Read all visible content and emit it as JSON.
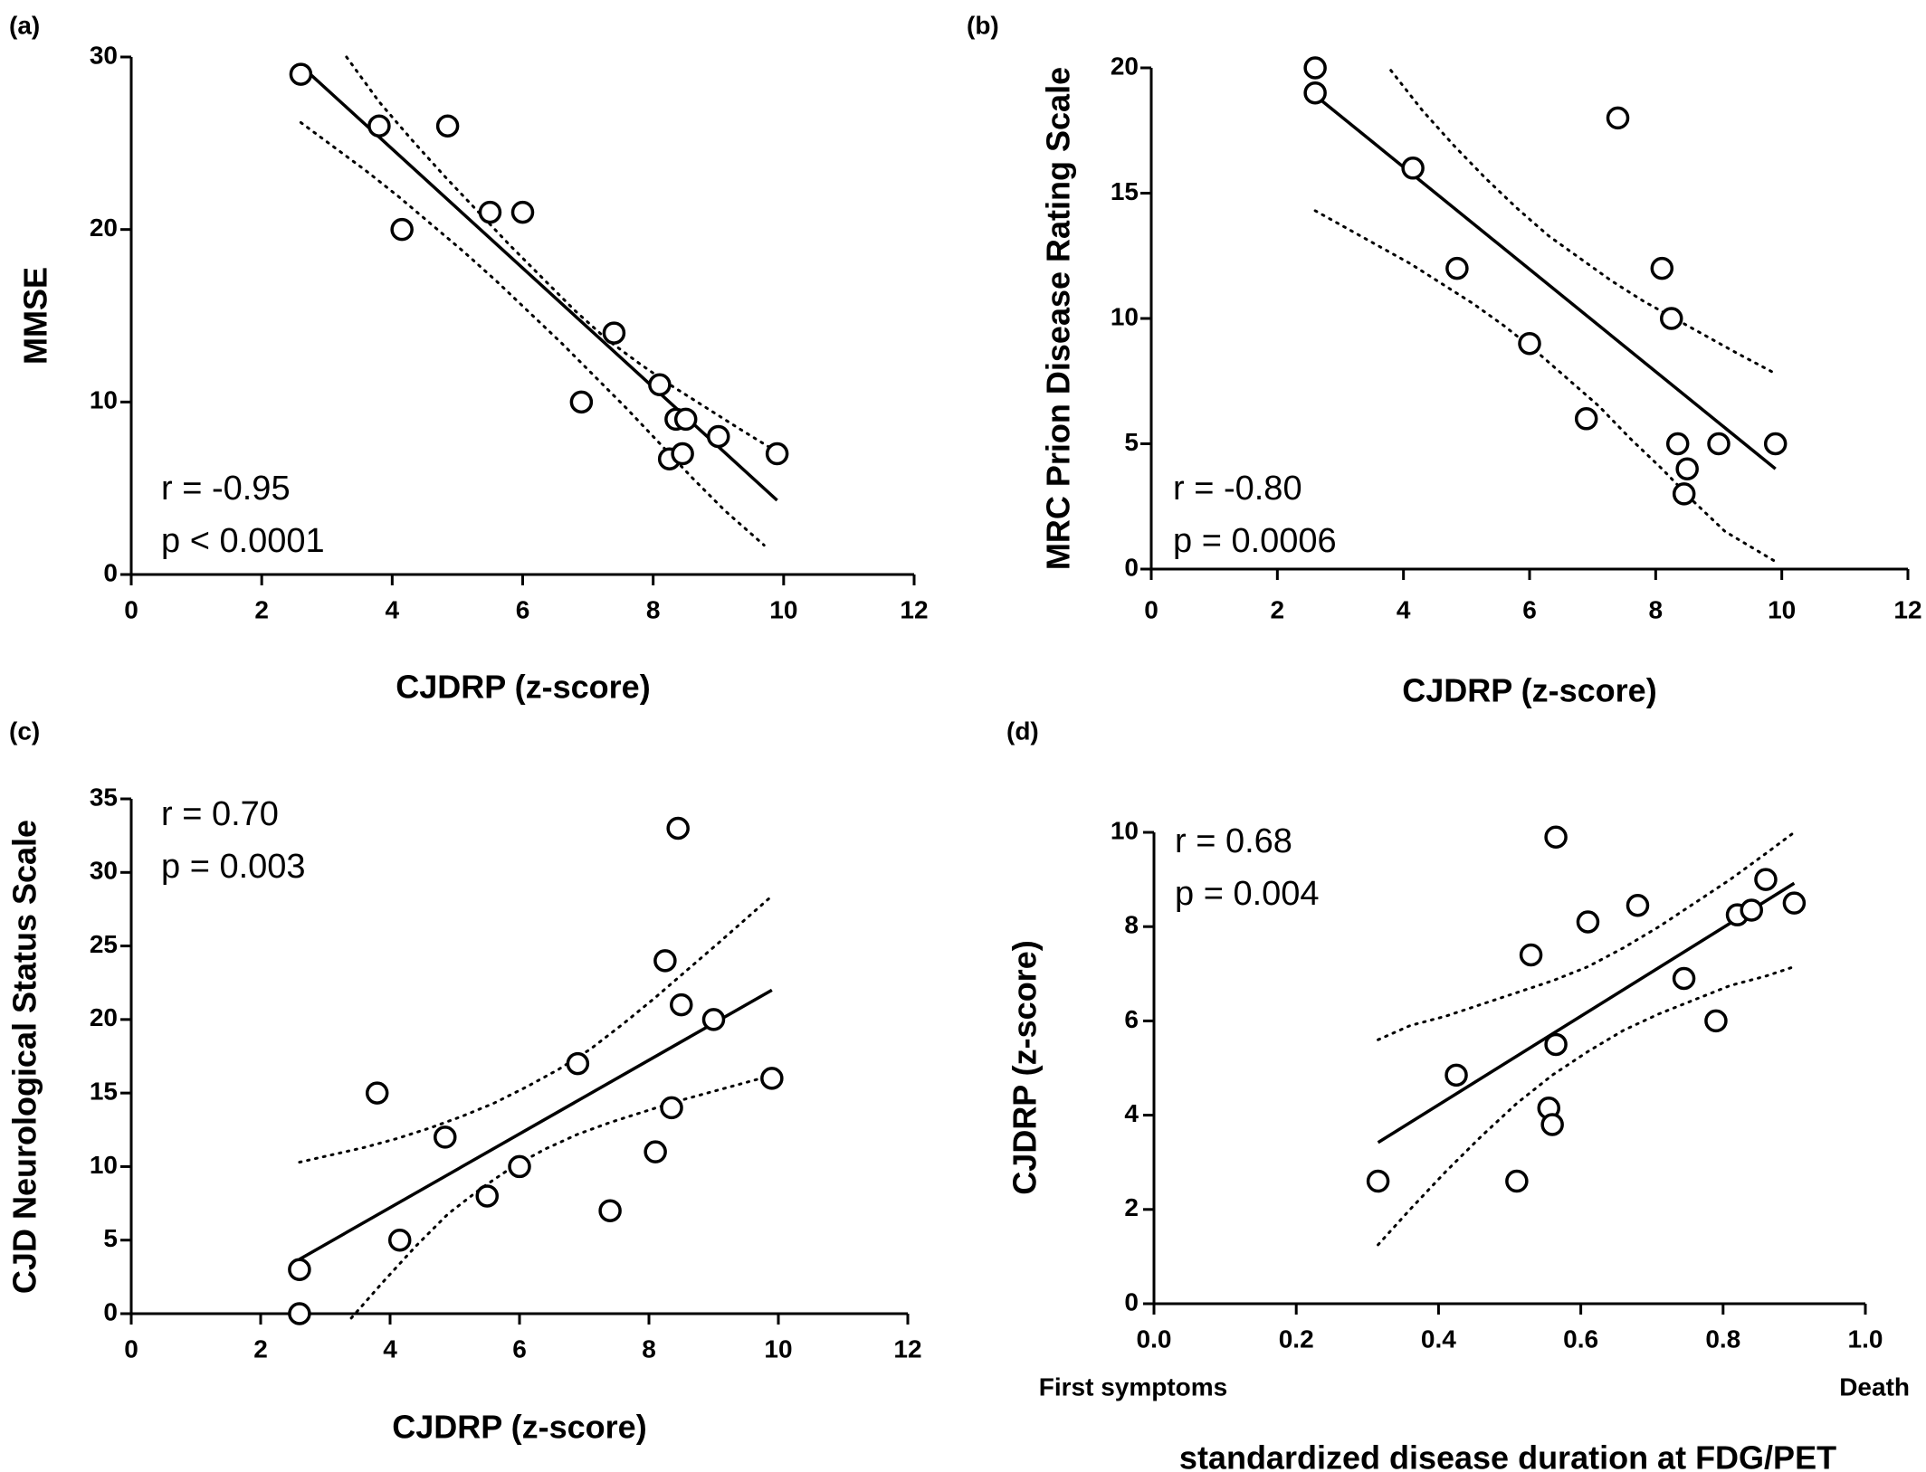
{
  "chart_data": [
    {
      "panel": "(a)",
      "type": "scatter",
      "xlabel": "CJDRP (z-score)",
      "ylabel": "MMSE",
      "xlim": [
        0,
        12
      ],
      "ylim": [
        0,
        30
      ],
      "xticks": [
        "0",
        "2",
        "4",
        "6",
        "8",
        "10",
        "12"
      ],
      "yticks": [
        "0",
        "10",
        "20",
        "30"
      ],
      "stats": [
        "r = -0.95",
        "p < 0.0001"
      ],
      "points": [
        {
          "x": 2.6,
          "y": 29
        },
        {
          "x": 3.8,
          "y": 26
        },
        {
          "x": 4.15,
          "y": 20
        },
        {
          "x": 4.85,
          "y": 26
        },
        {
          "x": 5.5,
          "y": 21
        },
        {
          "x": 6.0,
          "y": 21
        },
        {
          "x": 6.9,
          "y": 10
        },
        {
          "x": 7.4,
          "y": 14
        },
        {
          "x": 8.1,
          "y": 11
        },
        {
          "x": 8.25,
          "y": 6.7
        },
        {
          "x": 8.35,
          "y": 9
        },
        {
          "x": 8.45,
          "y": 7
        },
        {
          "x": 8.5,
          "y": 9
        },
        {
          "x": 9.0,
          "y": 8
        },
        {
          "x": 9.9,
          "y": 7
        }
      ],
      "fit": {
        "x": [
          2.6,
          9.9
        ],
        "y": [
          29.5,
          4.3
        ]
      },
      "ci_upper": {
        "x": [
          3.3,
          3.8,
          4.3,
          4.8,
          5.3,
          5.8,
          6.3,
          6.8,
          7.3,
          7.8,
          8.3,
          8.8,
          9.3,
          9.9
        ],
        "y": [
          30.0,
          27.4,
          25.2,
          23.1,
          21.1,
          19.1,
          17.2,
          15.3,
          13.6,
          12.2,
          10.9,
          9.7,
          8.5,
          7.1
        ]
      },
      "ci_lower": {
        "x": [
          2.6,
          3.1,
          3.6,
          4.1,
          4.6,
          5.1,
          5.6,
          6.1,
          6.6,
          7.1,
          7.6,
          8.1,
          8.6,
          9.1,
          9.7
        ],
        "y": [
          26.2,
          24.8,
          23.4,
          21.9,
          20.3,
          18.7,
          17.0,
          15.2,
          13.4,
          11.5,
          9.6,
          7.6,
          5.6,
          3.7,
          1.7
        ]
      }
    },
    {
      "panel": "(b)",
      "type": "scatter",
      "xlabel": "CJDRP (z-score)",
      "ylabel": "MRC Prion Disease Rating Scale",
      "xlim": [
        0,
        12
      ],
      "ylim": [
        0,
        20
      ],
      "xticks": [
        "0",
        "2",
        "4",
        "6",
        "8",
        "10",
        "12"
      ],
      "yticks": [
        "0",
        "5",
        "10",
        "15",
        "20"
      ],
      "stats": [
        "r = -0.80",
        "p = 0.0006"
      ],
      "points": [
        {
          "x": 2.6,
          "y": 20
        },
        {
          "x": 2.6,
          "y": 19
        },
        {
          "x": 4.15,
          "y": 16
        },
        {
          "x": 4.85,
          "y": 12
        },
        {
          "x": 6.0,
          "y": 9
        },
        {
          "x": 6.9,
          "y": 6
        },
        {
          "x": 7.4,
          "y": 18
        },
        {
          "x": 8.1,
          "y": 12
        },
        {
          "x": 8.25,
          "y": 10
        },
        {
          "x": 8.35,
          "y": 5
        },
        {
          "x": 8.45,
          "y": 3
        },
        {
          "x": 8.5,
          "y": 4
        },
        {
          "x": 9.0,
          "y": 5
        },
        {
          "x": 9.9,
          "y": 5
        }
      ],
      "fit": {
        "x": [
          2.6,
          9.9
        ],
        "y": [
          18.9,
          4.0
        ]
      },
      "ci_upper": {
        "x": [
          3.8,
          4.3,
          4.8,
          5.3,
          5.8,
          6.3,
          6.8,
          7.3,
          7.8,
          8.3,
          8.8,
          9.3,
          9.9
        ],
        "y": [
          19.9,
          18.3,
          16.9,
          15.6,
          14.4,
          13.3,
          12.4,
          11.5,
          10.7,
          10.0,
          9.3,
          8.6,
          7.8
        ]
      },
      "ci_lower": {
        "x": [
          2.6,
          3.1,
          3.6,
          4.1,
          4.6,
          5.1,
          5.6,
          6.1,
          6.6,
          7.1,
          7.6,
          8.1,
          8.6,
          9.1,
          9.9
        ],
        "y": [
          14.3,
          13.6,
          12.9,
          12.2,
          11.4,
          10.6,
          9.7,
          8.7,
          7.6,
          6.5,
          5.2,
          4.0,
          2.7,
          1.5,
          0.3
        ]
      }
    },
    {
      "panel": "(c)",
      "type": "scatter",
      "xlabel": "CJDRP (z-score)",
      "ylabel": "CJD Neurological Status Scale",
      "xlim": [
        0,
        12
      ],
      "ylim": [
        0,
        35
      ],
      "xticks": [
        "0",
        "2",
        "4",
        "6",
        "8",
        "10",
        "12"
      ],
      "yticks": [
        "0",
        "5",
        "10",
        "15",
        "20",
        "25",
        "30",
        "35"
      ],
      "stats": [
        "r = 0.70",
        "p = 0.003"
      ],
      "points": [
        {
          "x": 2.6,
          "y": 3
        },
        {
          "x": 2.6,
          "y": 0
        },
        {
          "x": 3.8,
          "y": 15
        },
        {
          "x": 4.15,
          "y": 5
        },
        {
          "x": 4.85,
          "y": 12
        },
        {
          "x": 5.5,
          "y": 8
        },
        {
          "x": 6.0,
          "y": 10
        },
        {
          "x": 6.9,
          "y": 17
        },
        {
          "x": 7.4,
          "y": 7
        },
        {
          "x": 8.1,
          "y": 11
        },
        {
          "x": 8.25,
          "y": 24
        },
        {
          "x": 8.35,
          "y": 14
        },
        {
          "x": 8.45,
          "y": 33
        },
        {
          "x": 8.5,
          "y": 21
        },
        {
          "x": 9.0,
          "y": 20
        },
        {
          "x": 9.9,
          "y": 16
        }
      ],
      "fit": {
        "x": [
          2.6,
          9.9
        ],
        "y": [
          3.7,
          22.0
        ]
      },
      "ci_upper": {
        "x": [
          2.6,
          3.1,
          3.6,
          4.1,
          4.6,
          5.1,
          5.6,
          6.1,
          6.6,
          7.1,
          7.6,
          8.1,
          8.6,
          9.1,
          9.9
        ],
        "y": [
          10.3,
          10.8,
          11.3,
          11.9,
          12.6,
          13.4,
          14.3,
          15.4,
          16.6,
          18.0,
          19.7,
          21.5,
          23.4,
          25.3,
          28.4
        ]
      },
      "ci_lower": {
        "x": [
          3.4,
          3.9,
          4.4,
          4.9,
          5.4,
          5.9,
          6.4,
          6.9,
          7.4,
          7.9,
          8.4,
          8.9,
          9.9
        ],
        "y": [
          -0.3,
          2.2,
          4.6,
          6.8,
          8.5,
          10.0,
          11.2,
          12.2,
          13.0,
          13.7,
          14.4,
          15.0,
          16.2
        ]
      }
    },
    {
      "panel": "(d)",
      "type": "scatter",
      "xlabel": "standardized disease duration at FDG/PET",
      "ylabel": "CJDRP (z-score)",
      "xlim": [
        0,
        1
      ],
      "ylim": [
        0,
        10
      ],
      "xticks": [
        "0.0",
        "0.2",
        "0.4",
        "0.6",
        "0.8",
        "1.0"
      ],
      "yticks": [
        "0",
        "2",
        "4",
        "6",
        "8",
        "10"
      ],
      "x_end_labels": [
        "First symptoms",
        "Death"
      ],
      "stats": [
        "r = 0.68",
        "p = 0.004"
      ],
      "points": [
        {
          "x": 0.315,
          "y": 2.6
        },
        {
          "x": 0.425,
          "y": 4.85
        },
        {
          "x": 0.51,
          "y": 2.6
        },
        {
          "x": 0.53,
          "y": 7.4
        },
        {
          "x": 0.555,
          "y": 4.15
        },
        {
          "x": 0.56,
          "y": 3.8
        },
        {
          "x": 0.565,
          "y": 9.9
        },
        {
          "x": 0.565,
          "y": 5.5
        },
        {
          "x": 0.61,
          "y": 8.1
        },
        {
          "x": 0.68,
          "y": 8.45
        },
        {
          "x": 0.745,
          "y": 6.9
        },
        {
          "x": 0.79,
          "y": 6.0
        },
        {
          "x": 0.82,
          "y": 8.25
        },
        {
          "x": 0.84,
          "y": 8.35
        },
        {
          "x": 0.86,
          "y": 9.0
        },
        {
          "x": 0.9,
          "y": 8.5
        }
      ],
      "fit": {
        "x": [
          0.315,
          0.9
        ],
        "y": [
          3.42,
          8.92
        ]
      },
      "ci_upper": {
        "x": [
          0.315,
          0.36,
          0.41,
          0.46,
          0.51,
          0.56,
          0.61,
          0.66,
          0.71,
          0.76,
          0.81,
          0.86,
          0.9
        ],
        "y": [
          5.6,
          5.9,
          6.1,
          6.35,
          6.6,
          6.85,
          7.15,
          7.55,
          8.0,
          8.5,
          9.0,
          9.55,
          10.0
        ]
      },
      "ci_lower": {
        "x": [
          0.315,
          0.36,
          0.41,
          0.46,
          0.51,
          0.56,
          0.61,
          0.66,
          0.71,
          0.76,
          0.81,
          0.86,
          0.9
        ],
        "y": [
          1.25,
          2.0,
          2.8,
          3.55,
          4.25,
          4.85,
          5.35,
          5.8,
          6.15,
          6.45,
          6.75,
          6.95,
          7.15
        ]
      }
    }
  ]
}
